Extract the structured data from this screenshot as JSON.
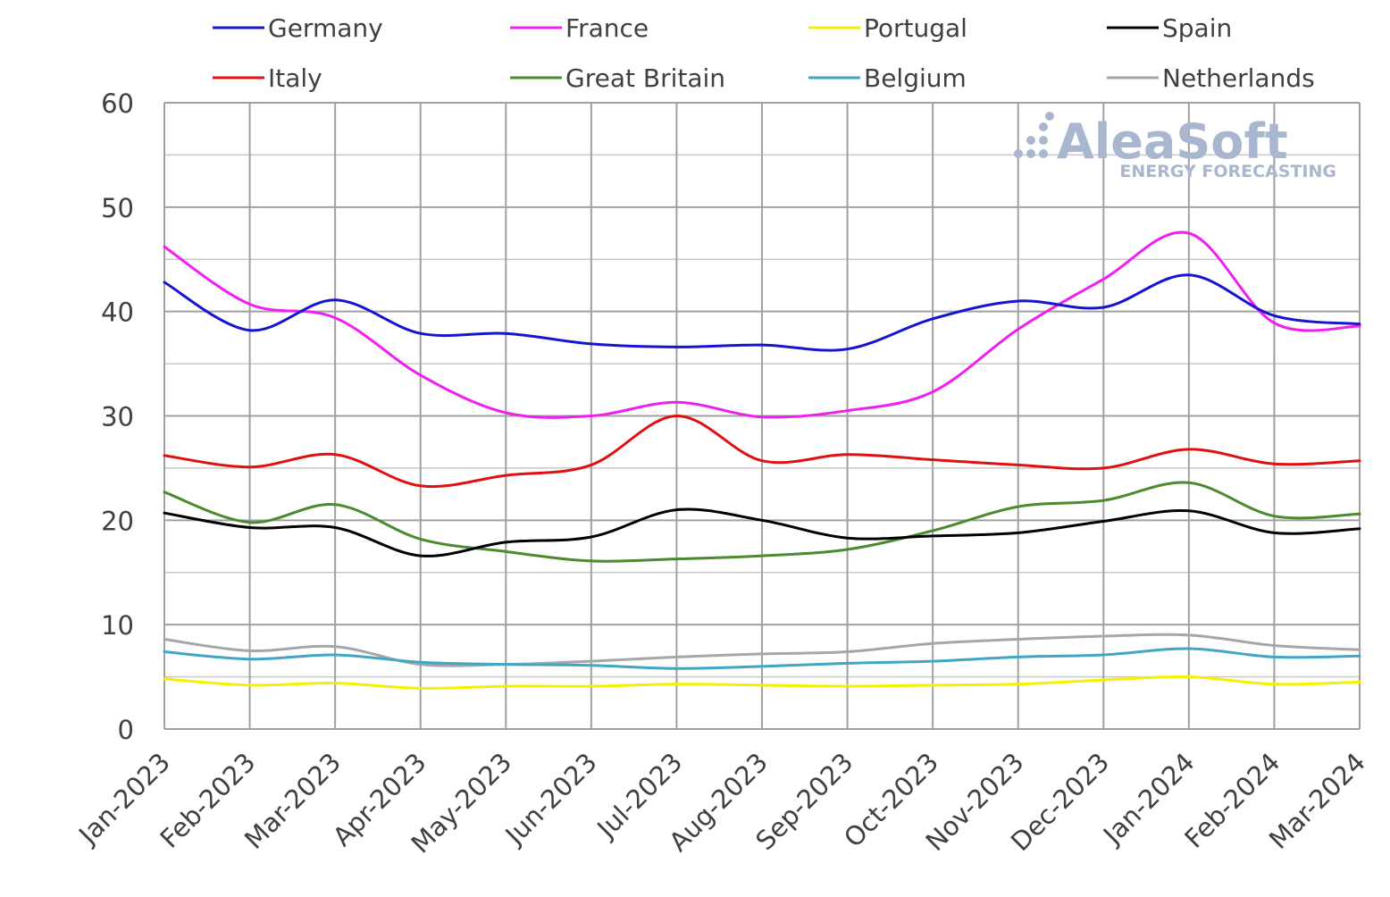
{
  "chart_data": {
    "type": "line",
    "title": "",
    "xlabel": "",
    "ylabel": "",
    "ylim": [
      0,
      60
    ],
    "yticks": [
      0,
      10,
      20,
      30,
      40,
      50,
      60
    ],
    "grid": true,
    "legend_position": "top",
    "categories": [
      "Jan-2023",
      "Feb-2023",
      "Mar-2023",
      "Apr-2023",
      "May-2023",
      "Jun-2023",
      "Jul-2023",
      "Aug-2023",
      "Sep-2023",
      "Oct-2023",
      "Nov-2023",
      "Dec-2023",
      "Jan-2024",
      "Feb-2024",
      "Mar-2024"
    ],
    "series": [
      {
        "name": "Germany",
        "color": "#1515d0",
        "values": [
          42.8,
          38.2,
          41.1,
          37.9,
          37.9,
          36.9,
          36.6,
          36.8,
          36.4,
          39.3,
          41.0,
          40.4,
          43.5,
          39.6,
          38.8
        ]
      },
      {
        "name": "France",
        "color": "#f01ef0",
        "values": [
          46.2,
          40.7,
          39.4,
          33.9,
          30.3,
          30.0,
          31.3,
          29.9,
          30.5,
          32.3,
          38.3,
          43.1,
          47.5,
          38.9,
          38.6
        ]
      },
      {
        "name": "Portugal",
        "color": "#f5f000",
        "values": [
          4.8,
          4.2,
          4.4,
          3.9,
          4.1,
          4.1,
          4.3,
          4.2,
          4.1,
          4.2,
          4.3,
          4.7,
          5.0,
          4.3,
          4.5
        ]
      },
      {
        "name": "Spain",
        "color": "#000000",
        "values": [
          20.7,
          19.3,
          19.3,
          16.6,
          17.9,
          18.4,
          21.0,
          20.0,
          18.3,
          18.5,
          18.8,
          19.9,
          20.9,
          18.8,
          19.2
        ]
      },
      {
        "name": "Italy",
        "color": "#e01010",
        "values": [
          26.2,
          25.1,
          26.3,
          23.3,
          24.3,
          25.3,
          30.0,
          25.7,
          26.3,
          25.8,
          25.3,
          25.0,
          26.8,
          25.4,
          25.7
        ]
      },
      {
        "name": "Great Britain",
        "color": "#4b8a2e",
        "values": [
          22.7,
          19.8,
          21.5,
          18.2,
          17.0,
          16.1,
          16.3,
          16.6,
          17.2,
          19.0,
          21.3,
          21.9,
          23.6,
          20.4,
          20.6
        ]
      },
      {
        "name": "Belgium",
        "color": "#3fa6c4",
        "values": [
          7.4,
          6.7,
          7.1,
          6.4,
          6.2,
          6.1,
          5.8,
          6.0,
          6.3,
          6.5,
          6.9,
          7.1,
          7.7,
          6.9,
          7.0
        ]
      },
      {
        "name": "Netherlands",
        "color": "#a6a6a6",
        "values": [
          8.6,
          7.5,
          7.9,
          6.2,
          6.2,
          6.5,
          6.9,
          7.2,
          7.4,
          8.2,
          8.6,
          8.9,
          9.0,
          8.0,
          7.6
        ]
      }
    ]
  },
  "watermark": {
    "brand": "AleaSoft",
    "tagline": "ENERGY FORECASTING"
  }
}
